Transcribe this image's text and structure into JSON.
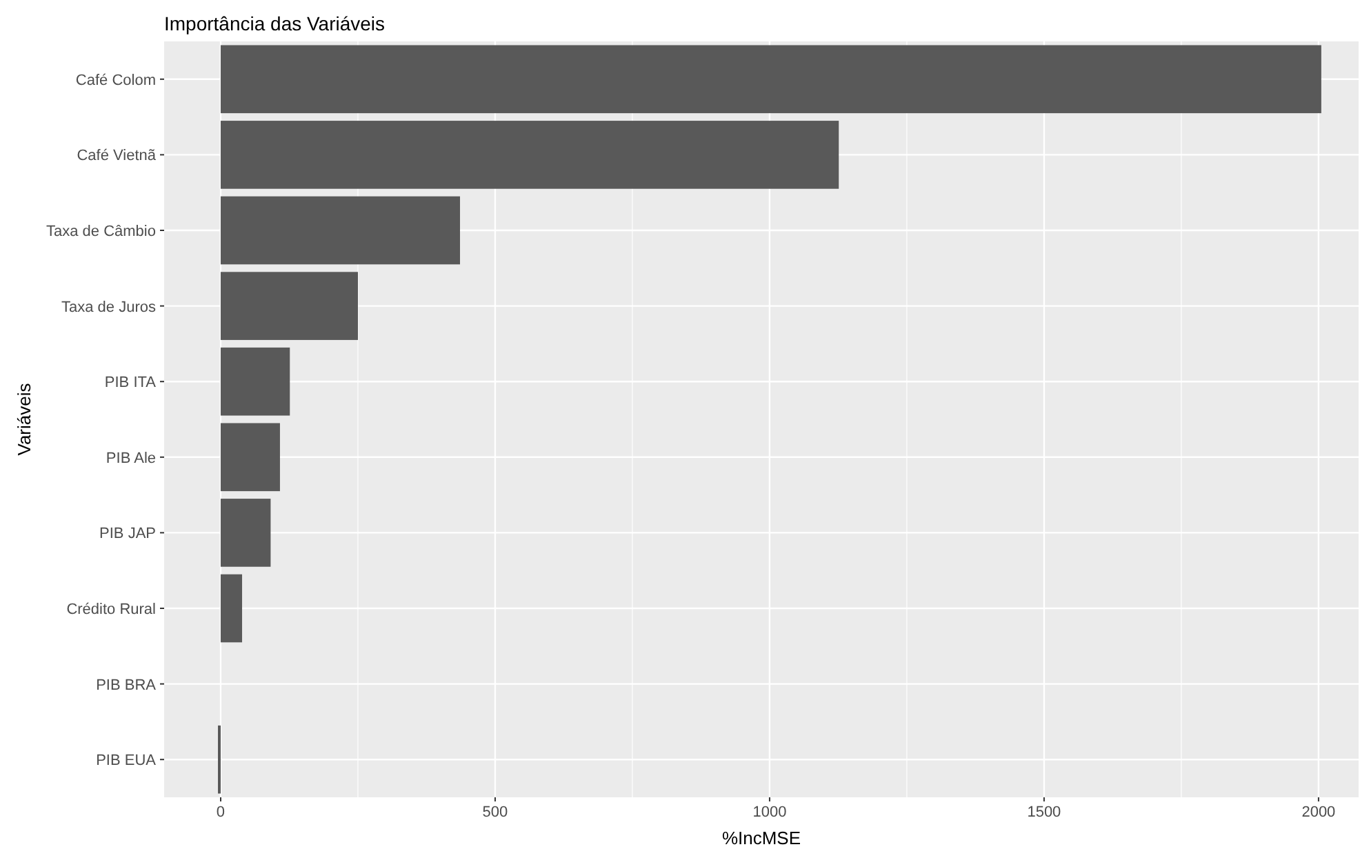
{
  "chart_data": {
    "type": "bar",
    "orientation": "horizontal",
    "title": "Importância das Variáveis",
    "xlabel": "%IncMSE",
    "ylabel": "Variáveis",
    "categories": [
      "Café Colom",
      "Café Vietnã",
      "Taxa de Câmbio",
      "Taxa de Juros",
      "PIB ITA",
      "PIB Ale",
      "PIB JAP",
      "Crédito Rural",
      "PIB BRA",
      "PIB EUA"
    ],
    "values": [
      2005,
      1126,
      436,
      250,
      126,
      108,
      91,
      39,
      0,
      -5
    ],
    "color": "#595959",
    "xlim": [
      -103,
      2073
    ],
    "xticks": [
      0,
      500,
      1000,
      1500,
      2000
    ],
    "grid": true
  }
}
